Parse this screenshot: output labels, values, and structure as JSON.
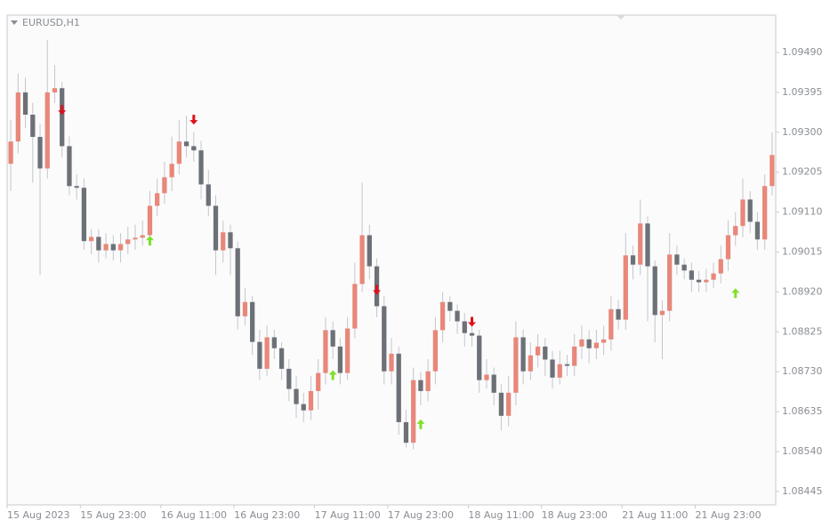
{
  "chart_data": {
    "type": "candlestick",
    "title": "EURUSD,H1",
    "categories": [
      "15 Aug 2023",
      null,
      null,
      null,
      null,
      null,
      null,
      null,
      null,
      null,
      "15 Aug 23:00",
      null,
      null,
      null,
      null,
      null,
      null,
      null,
      null,
      null,
      null,
      "16 Aug 11:00",
      null,
      null,
      null,
      null,
      null,
      null,
      null,
      null,
      null,
      "16 Aug 23:00",
      null,
      null,
      null,
      null,
      null,
      null,
      null,
      null,
      null,
      null,
      "17 Aug 11:00",
      null,
      null,
      null,
      null,
      null,
      null,
      null,
      null,
      null,
      "17 Aug 23:00",
      null,
      null,
      null,
      null,
      null,
      null,
      null,
      null,
      null,
      null,
      "18 Aug 11:00",
      null,
      null,
      null,
      null,
      null,
      null,
      null,
      null,
      null,
      "18 Aug 23:00",
      null,
      null,
      null,
      null,
      null,
      null,
      null,
      null,
      null,
      null,
      "21 Aug 11:00",
      null,
      null,
      null,
      null,
      null,
      null,
      null,
      null,
      null,
      "21 Aug 23:00",
      null,
      null,
      null,
      null,
      null,
      null,
      null,
      null,
      null,
      null
    ],
    "open": [
      1.09225,
      1.09278,
      1.09395,
      1.09342,
      1.09289,
      1.09214,
      1.09395,
      1.09405,
      1.09267,
      1.09172,
      1.09168,
      1.09041,
      1.09051,
      1.09019,
      1.09034,
      1.09019,
      1.09034,
      1.09045,
      1.09049,
      1.09055,
      1.09125,
      1.09155,
      1.09193,
      1.09225,
      1.09278,
      1.09267,
      1.09257,
      1.09176,
      1.09125,
      1.09019,
      1.09062,
      1.09024,
      1.08862,
      1.08896,
      1.08801,
      1.08737,
      1.08812,
      1.08786,
      1.08737,
      1.08689,
      1.08653,
      1.08638,
      1.08684,
      1.08727,
      1.08829,
      1.0879,
      1.08727,
      1.08833,
      1.08939,
      1.09055,
      1.08981,
      1.08886,
      1.08731,
      1.08773,
      1.0861,
      1.08561,
      1.0871,
      1.08684,
      1.08731,
      1.08829,
      1.08896,
      1.08875,
      1.0885,
      1.08822,
      1.08816,
      1.0871,
      1.08723,
      1.0868,
      1.08625,
      1.0868,
      1.08812,
      1.08731,
      1.08769,
      1.0879,
      1.08759,
      1.08716,
      1.08748,
      1.08744,
      1.0879,
      1.08807,
      1.08786,
      1.08799,
      1.08807,
      1.08879,
      1.08854,
      1.09007,
      1.08985,
      1.09083,
      1.08981,
      1.08865,
      1.08875,
      1.09009,
      1.08985,
      1.08971,
      1.08949,
      1.08943,
      1.08949,
      1.08964,
      1.08998,
      1.09055,
      1.09077,
      1.0914,
      1.09087,
      1.09045,
      1.09172
    ],
    "high": [
      1.0933,
      1.0944,
      1.0943,
      1.0937,
      1.0932,
      1.0952,
      1.0946,
      1.0942,
      1.0929,
      1.092,
      1.0919,
      1.0907,
      1.0907,
      1.0906,
      1.09055,
      1.0906,
      1.09075,
      1.0908,
      1.0909,
      1.0916,
      1.0919,
      1.0923,
      1.0929,
      1.0933,
      1.0934,
      1.093,
      1.0928,
      1.0921,
      1.0915,
      1.0909,
      1.0908,
      1.0904,
      1.0893,
      1.0891,
      1.0883,
      1.0884,
      1.0883,
      1.088,
      1.0876,
      1.0872,
      1.0868,
      1.0872,
      1.0876,
      1.0886,
      1.0885,
      1.0881,
      1.0886,
      1.0899,
      1.0918,
      1.0908,
      1.09,
      1.0891,
      1.0881,
      1.0879,
      1.0864,
      1.0874,
      1.0873,
      1.0876,
      1.0886,
      1.0892,
      1.0891,
      1.0889,
      1.0887,
      1.0884,
      1.0883,
      1.0876,
      1.0874,
      1.087,
      1.0872,
      1.0885,
      1.0883,
      1.088,
      1.0882,
      1.0881,
      1.0878,
      1.0878,
      1.0877,
      1.0882,
      1.0884,
      1.0883,
      1.0883,
      1.0884,
      1.0891,
      1.089,
      1.0906,
      1.0903,
      1.0914,
      1.091,
      1.08995,
      1.089,
      1.0906,
      1.0903,
      1.09,
      1.0899,
      1.0897,
      1.08975,
      1.0899,
      1.0903,
      1.0909,
      1.0911,
      1.0919,
      1.0916,
      1.0911,
      1.092,
      1.093
    ],
    "low": [
      1.0916,
      1.0925,
      1.0931,
      1.0918,
      1.0896,
      1.0919,
      1.0937,
      1.0924,
      1.0915,
      1.0914,
      1.0902,
      1.0901,
      1.0899,
      1.09,
      1.08995,
      1.0899,
      1.0901,
      1.0902,
      1.0903,
      1.0904,
      1.091,
      1.0913,
      1.0916,
      1.092,
      1.0924,
      1.0923,
      1.0914,
      1.091,
      1.0896,
      1.0899,
      1.0896,
      1.0883,
      1.0884,
      1.0877,
      1.0871,
      1.0872,
      1.0876,
      1.0871,
      1.0866,
      1.0862,
      1.0861,
      1.08615,
      1.0864,
      1.087,
      1.0876,
      1.087,
      1.0871,
      1.0881,
      1.0892,
      1.0895,
      1.0886,
      1.087,
      1.087,
      1.0858,
      1.0855,
      1.08545,
      1.0865,
      1.0866,
      1.087,
      1.088,
      1.0885,
      1.0882,
      1.0879,
      1.0879,
      1.0868,
      1.0869,
      1.0865,
      1.0859,
      1.086,
      1.0865,
      1.087,
      1.0871,
      1.0874,
      1.0872,
      1.0869,
      1.087,
      1.0872,
      1.0872,
      1.0876,
      1.0875,
      1.0876,
      1.0877,
      1.0878,
      1.0883,
      1.0883,
      1.0895,
      1.0896,
      1.0885,
      1.088,
      1.0876,
      1.0885,
      1.0896,
      1.0895,
      1.0892,
      1.0892,
      1.0892,
      1.0893,
      1.0894,
      1.0897,
      1.0903,
      1.0905,
      1.0906,
      1.0902,
      1.0902,
      1.0915
    ],
    "close": [
      1.09278,
      1.09395,
      1.09342,
      1.09289,
      1.09214,
      1.09395,
      1.09405,
      1.09267,
      1.09172,
      1.09168,
      1.09041,
      1.09051,
      1.09019,
      1.09034,
      1.09019,
      1.09034,
      1.09045,
      1.09049,
      1.09055,
      1.09125,
      1.09155,
      1.09193,
      1.09225,
      1.09278,
      1.09267,
      1.09257,
      1.09176,
      1.09125,
      1.09019,
      1.09062,
      1.09024,
      1.08862,
      1.08896,
      1.08801,
      1.08737,
      1.08812,
      1.08786,
      1.08737,
      1.08689,
      1.08653,
      1.08638,
      1.08684,
      1.08727,
      1.08829,
      1.0879,
      1.08727,
      1.08833,
      1.08939,
      1.09055,
      1.08981,
      1.08886,
      1.08731,
      1.08773,
      1.0861,
      1.08561,
      1.0871,
      1.08684,
      1.08731,
      1.08829,
      1.08896,
      1.08875,
      1.0885,
      1.08822,
      1.08816,
      1.0871,
      1.08723,
      1.0868,
      1.08625,
      1.0868,
      1.08812,
      1.08731,
      1.08769,
      1.0879,
      1.08759,
      1.08716,
      1.08748,
      1.08744,
      1.0879,
      1.08807,
      1.08786,
      1.08799,
      1.08807,
      1.08879,
      1.08854,
      1.09007,
      1.08985,
      1.09083,
      1.08981,
      1.08865,
      1.08875,
      1.09009,
      1.08985,
      1.08971,
      1.08949,
      1.08943,
      1.08949,
      1.08964,
      1.08998,
      1.09055,
      1.09077,
      1.0914,
      1.09087,
      1.09045,
      1.09172,
      1.09246
    ],
    "up_color": "#e8877a",
    "down_color": "#6c7077",
    "wick_color": "#c4c6ca",
    "signals": [
      {
        "bar": 7,
        "direction": "down",
        "value": 1.09352,
        "color": "#e0101a"
      },
      {
        "bar": 25,
        "direction": "down",
        "value": 1.09329,
        "color": "#e0101a"
      },
      {
        "bar": 50,
        "direction": "down",
        "value": 1.08924,
        "color": "#e0101a"
      },
      {
        "bar": 63,
        "direction": "down",
        "value": 1.08848,
        "color": "#e0101a"
      },
      {
        "bar": 19,
        "direction": "up",
        "value": 1.09043,
        "color": "#7ee02a"
      },
      {
        "bar": 44,
        "direction": "up",
        "value": 1.08723,
        "color": "#7ee02a"
      },
      {
        "bar": 56,
        "direction": "up",
        "value": 1.08606,
        "color": "#7ee02a"
      },
      {
        "bar": 99,
        "direction": "up",
        "value": 1.08918,
        "color": "#7ee02a"
      }
    ],
    "ylim": [
      1.08413,
      1.09579
    ],
    "yticks": [
      1.08445,
      {
        "value": 1.0854,
        "label": "1.08540"
      },
      1.08635,
      {
        "value": 1.0873,
        "label": "1.08730"
      },
      1.08825,
      {
        "value": 1.0892,
        "label": "1.08920"
      },
      1.09015,
      {
        "value": 1.0911,
        "label": "1.09110"
      },
      1.09205,
      {
        "value": 1.093,
        "label": "1.09300"
      },
      1.09395,
      {
        "value": 1.0949,
        "label": "1.09490"
      }
    ],
    "y_axis_side": "right"
  }
}
